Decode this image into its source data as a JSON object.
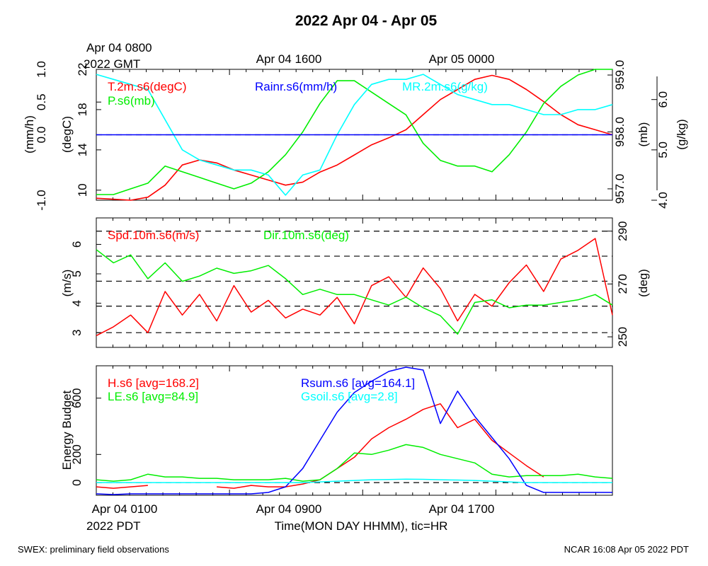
{
  "title": "2022 Apr 04 - Apr 05",
  "top_axis": {
    "labels": [
      "Apr 04 0800",
      "Apr 04 1600",
      "Apr 05 0000"
    ],
    "second_line": "2022 GMT"
  },
  "bottom_axis": {
    "labels": [
      "Apr 04 0100",
      "Apr 04 0900",
      "Apr 04 1700"
    ],
    "second_line": "2022 PDT",
    "xlabel": "Time(MON DAY HHMM), tic=HR"
  },
  "footer": {
    "left": "SWEX: preliminary field observations",
    "right": "NCAR 16:08 Apr 05 2022 PDT"
  },
  "colors": {
    "red": "#ff0000",
    "green": "#00ee00",
    "blue": "#0000ff",
    "cyan": "#00ffff",
    "black": "#000000"
  },
  "chart_data": [
    {
      "type": "line",
      "panel": "top",
      "axes": {
        "rain": {
          "label": "(mm/h)",
          "ylim": [
            -1.0,
            1.0
          ],
          "ticks": [
            "-1.0",
            "0.0",
            "0.5",
            "1.0"
          ]
        },
        "temp": {
          "label": "(degC)",
          "ylim": [
            9,
            22
          ],
          "ticks": [
            "10",
            "14",
            "18",
            "22"
          ]
        },
        "pres": {
          "label": "(mb)",
          "ylim": [
            956.8,
            959.1
          ],
          "ticks": [
            "957.0",
            "958.0",
            "959.0"
          ]
        },
        "mr": {
          "label": "(g/kg)",
          "ylim": [
            4.0,
            6.6
          ],
          "ticks": [
            "4.0",
            "5.0",
            "6.0"
          ]
        }
      },
      "x": [
        1,
        2,
        3,
        4,
        5,
        6,
        7,
        8,
        9,
        10,
        11,
        12,
        13,
        14,
        15,
        16,
        17,
        18,
        19,
        20,
        21,
        22,
        23,
        24,
        25,
        26,
        27,
        28,
        29,
        30,
        31
      ],
      "series": [
        {
          "name": "T.2m.s6(degC)",
          "axis": "temp",
          "color": "#ff0000",
          "values": [
            9.2,
            9.1,
            9.0,
            9.3,
            10.5,
            12.5,
            13.0,
            12.7,
            12.0,
            11.5,
            11.0,
            10.5,
            10.8,
            11.8,
            12.5,
            13.5,
            14.5,
            15.2,
            16.0,
            17.5,
            19.0,
            20.0,
            21.0,
            21.4,
            21.0,
            20.0,
            18.8,
            17.5,
            16.5,
            16.0,
            15.5
          ]
        },
        {
          "name": "P.s6(mb)",
          "axis": "pres",
          "color": "#00ee00",
          "values": [
            956.9,
            956.9,
            957.0,
            957.1,
            957.4,
            957.3,
            957.2,
            957.1,
            957.0,
            957.1,
            957.3,
            957.6,
            958.0,
            958.5,
            958.9,
            958.9,
            958.7,
            958.5,
            958.3,
            957.8,
            957.5,
            957.4,
            957.4,
            957.3,
            957.6,
            958.0,
            958.5,
            958.8,
            959.0,
            959.1,
            959.1
          ]
        },
        {
          "name": "MR.2m.s6(g/kg)",
          "axis": "mr",
          "color": "#00ffff",
          "values": [
            6.5,
            6.4,
            6.3,
            6.2,
            5.6,
            5.0,
            4.8,
            4.7,
            4.6,
            4.6,
            4.5,
            4.1,
            4.5,
            4.6,
            5.3,
            5.9,
            6.3,
            6.4,
            6.4,
            6.5,
            6.3,
            6.1,
            6.0,
            5.9,
            5.9,
            5.8,
            5.7,
            5.7,
            5.8,
            5.8,
            5.9
          ]
        },
        {
          "name": "Rainr.s6(mm/h)",
          "axis": "rain",
          "color": "#0000ff",
          "values": [
            0,
            0,
            0,
            0,
            0,
            0,
            0,
            0,
            0,
            0,
            0,
            0,
            0,
            0,
            0,
            0,
            0,
            0,
            0,
            0,
            0,
            0,
            0,
            0,
            0,
            0,
            0,
            0,
            0,
            0,
            0
          ]
        }
      ]
    },
    {
      "type": "line",
      "panel": "middle",
      "axes": {
        "spd": {
          "label": "(m/s)",
          "ylim": [
            2.5,
            6.9
          ],
          "ticks": [
            "3",
            "4",
            "5",
            "6"
          ]
        },
        "dir": {
          "label": "(deg)",
          "ylim": [
            246,
            295
          ],
          "ticks": [
            "250",
            "270",
            "290"
          ]
        }
      },
      "x": [
        1,
        2,
        3,
        4,
        5,
        6,
        7,
        8,
        9,
        10,
        11,
        12,
        13,
        14,
        15,
        16,
        17,
        18,
        19,
        20,
        21,
        22,
        23,
        24,
        25,
        26,
        27,
        28,
        29,
        30,
        31
      ],
      "series": [
        {
          "name": "Spd.10m.s6(m/s)",
          "axis": "spd",
          "color": "#ff0000",
          "values": [
            2.9,
            3.2,
            3.6,
            3.0,
            4.4,
            3.6,
            4.3,
            3.4,
            4.6,
            3.7,
            4.1,
            3.5,
            3.8,
            3.6,
            4.2,
            3.3,
            4.6,
            4.9,
            4.2,
            5.2,
            4.5,
            3.4,
            4.3,
            3.9,
            4.7,
            5.3,
            4.4,
            5.5,
            5.8,
            6.2,
            3.6
          ]
        },
        {
          "name": "Dir.10m.s6(deg)",
          "axis": "dir",
          "color": "#00ee00",
          "values": [
            283,
            278,
            281,
            272,
            278,
            271,
            273,
            276,
            274,
            275,
            277,
            272,
            266,
            268,
            266,
            266,
            264,
            262,
            265,
            261,
            258,
            251,
            263,
            264,
            261,
            262,
            262,
            263,
            264,
            266,
            262
          ]
        }
      ],
      "reference_lines": [
        3,
        3.9,
        4.75,
        5.6,
        6.45
      ]
    },
    {
      "type": "line",
      "panel": "bottom",
      "axes": {
        "energy": {
          "label": "Energy Budget",
          "ylim": [
            -90,
            830
          ],
          "ticks": [
            "0",
            "200",
            "600"
          ]
        }
      },
      "x": [
        1,
        2,
        3,
        4,
        5,
        6,
        7,
        8,
        9,
        10,
        11,
        12,
        13,
        14,
        15,
        16,
        17,
        18,
        19,
        20,
        21,
        22,
        23,
        24,
        25,
        26,
        27,
        28,
        29,
        30,
        31
      ],
      "series": [
        {
          "name": "H.s6 [avg=168.2]",
          "color": "#ff0000",
          "values": [
            -30,
            -40,
            -30,
            -20,
            null,
            null,
            null,
            -30,
            -40,
            -20,
            -30,
            -30,
            -10,
            20,
            100,
            180,
            310,
            390,
            450,
            520,
            560,
            390,
            450,
            300,
            210,
            120,
            40,
            null,
            null,
            null,
            null
          ]
        },
        {
          "name": "LE.s6 [avg=84.9]",
          "color": "#00ee00",
          "values": [
            20,
            10,
            20,
            60,
            40,
            40,
            30,
            30,
            20,
            20,
            20,
            30,
            10,
            20,
            100,
            210,
            200,
            230,
            270,
            250,
            200,
            170,
            140,
            60,
            40,
            50,
            50,
            50,
            60,
            40,
            30
          ]
        },
        {
          "name": "Rsum.s6 [avg=164.1]",
          "color": "#0000ff",
          "values": [
            -80,
            -85,
            -80,
            -80,
            -80,
            -80,
            -80,
            -80,
            -80,
            -80,
            -70,
            -30,
            100,
            300,
            500,
            640,
            720,
            790,
            820,
            800,
            420,
            650,
            470,
            320,
            170,
            -20,
            -70,
            -70,
            -70,
            -70,
            -70
          ]
        },
        {
          "name": "Gsoil.s6 [avg=2.8]",
          "color": "#00ffff",
          "values": [
            0,
            0,
            0,
            0,
            0,
            0,
            0,
            0,
            0,
            0,
            0,
            0,
            0,
            5,
            10,
            15,
            20,
            22,
            24,
            23,
            20,
            18,
            15,
            10,
            5,
            0,
            0,
            0,
            0,
            0,
            0
          ]
        }
      ],
      "reference_lines": [
        0
      ]
    }
  ]
}
